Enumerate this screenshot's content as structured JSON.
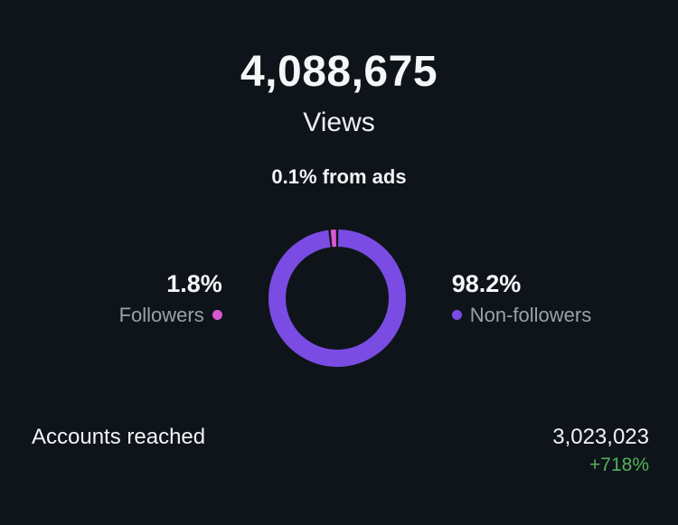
{
  "views": {
    "count": "4,088,675",
    "label": "Views",
    "ads_note": "0.1% from ads"
  },
  "chart_data": {
    "type": "pie",
    "donut": true,
    "title": "Views",
    "start_angle": "top",
    "gap_degrees": 2,
    "legend_position": "sides",
    "slices": [
      {
        "label": "Non-followers",
        "value": 98.2,
        "display": "98.2%",
        "color": "#7a4ce3"
      },
      {
        "label": "Followers",
        "value": 1.8,
        "display": "1.8%",
        "color": "#d957d2"
      }
    ]
  },
  "accounts_reached": {
    "label": "Accounts reached",
    "value": "3,023,023",
    "change": "+718%",
    "change_color": "#52b25a"
  },
  "colors": {
    "background": "#0f141a",
    "text_primary": "#f5f6f7",
    "text_secondary": "#9aa1a9"
  }
}
